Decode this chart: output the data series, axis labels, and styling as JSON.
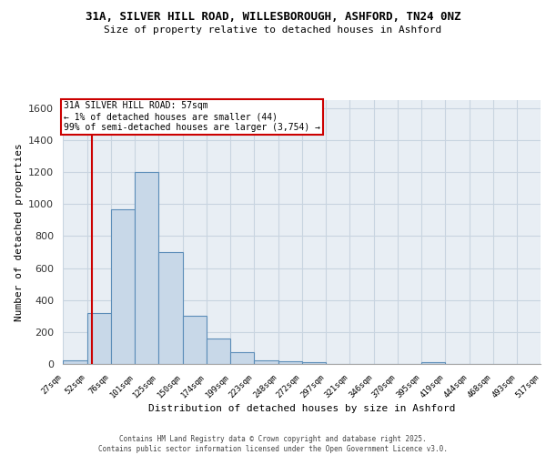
{
  "title_line1": "31A, SILVER HILL ROAD, WILLESBOROUGH, ASHFORD, TN24 0NZ",
  "title_line2": "Size of property relative to detached houses in Ashford",
  "xlabel": "Distribution of detached houses by size in Ashford",
  "ylabel": "Number of detached properties",
  "bar_edges": [
    27,
    52,
    76,
    101,
    125,
    150,
    174,
    199,
    223,
    248,
    272,
    297,
    321,
    346,
    370,
    395,
    419,
    444,
    468,
    493,
    517
  ],
  "bar_heights": [
    22,
    320,
    970,
    1200,
    700,
    300,
    160,
    75,
    25,
    15,
    13,
    1,
    1,
    1,
    1,
    12,
    1,
    1,
    1,
    1,
    12
  ],
  "bar_color": "#c8d8e8",
  "bar_edge_color": "#5b8db8",
  "bg_color": "#e8eef4",
  "grid_color": "#c8d4e0",
  "annotation_text": "31A SILVER HILL ROAD: 57sqm\n← 1% of detached houses are smaller (44)\n99% of semi-detached houses are larger (3,754) →",
  "annotation_box_color": "#ffffff",
  "annotation_box_edge": "#cc0000",
  "vline_x": 57,
  "vline_color": "#cc0000",
  "ylim": [
    0,
    1650
  ],
  "yticks": [
    0,
    200,
    400,
    600,
    800,
    1000,
    1200,
    1400,
    1600
  ],
  "tick_labels": [
    "27sqm",
    "52sqm",
    "76sqm",
    "101sqm",
    "125sqm",
    "150sqm",
    "174sqm",
    "199sqm",
    "223sqm",
    "248sqm",
    "272sqm",
    "297sqm",
    "321sqm",
    "346sqm",
    "370sqm",
    "395sqm",
    "419sqm",
    "444sqm",
    "468sqm",
    "493sqm",
    "517sqm"
  ],
  "footer_line1": "Contains HM Land Registry data © Crown copyright and database right 2025.",
  "footer_line2": "Contains public sector information licensed under the Open Government Licence v3.0."
}
